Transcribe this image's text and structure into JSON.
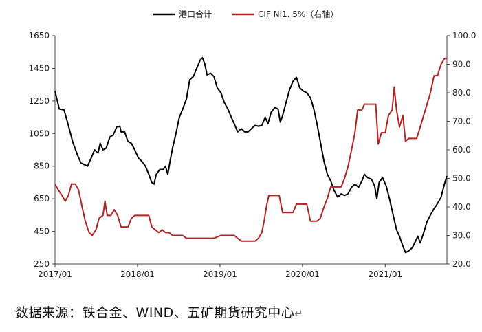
{
  "chart_data": {
    "type": "line",
    "legend_position": "top-center",
    "x": {
      "ticks": [
        "2017/01",
        "2018/01",
        "2019/01",
        "2020/01",
        "2021/01"
      ],
      "range": [
        "2017-01-01",
        "2021-10-01"
      ]
    },
    "y_left": {
      "ticks": [
        "250",
        "450",
        "650",
        "850",
        "1050",
        "1250",
        "1450",
        "1650"
      ],
      "range": [
        250,
        1650
      ]
    },
    "y_right": {
      "ticks": [
        "20.0",
        "30.0",
        "40.0",
        "50.0",
        "60.0",
        "70.0",
        "80.0",
        "90.0",
        "100.0"
      ],
      "range": [
        20,
        100
      ]
    },
    "series": [
      {
        "name": "港口合计",
        "axis": "left",
        "color": "#000000",
        "points": [
          [
            "2017-01-01",
            1310
          ],
          [
            "2017-01-20",
            1200
          ],
          [
            "2017-02-10",
            1195
          ],
          [
            "2017-03-01",
            1100
          ],
          [
            "2017-03-20",
            1000
          ],
          [
            "2017-04-10",
            920
          ],
          [
            "2017-04-25",
            870
          ],
          [
            "2017-05-10",
            860
          ],
          [
            "2017-05-25",
            850
          ],
          [
            "2017-06-10",
            900
          ],
          [
            "2017-06-25",
            950
          ],
          [
            "2017-07-10",
            930
          ],
          [
            "2017-07-20",
            990
          ],
          [
            "2017-08-01",
            950
          ],
          [
            "2017-08-15",
            960
          ],
          [
            "2017-09-01",
            1030
          ],
          [
            "2017-09-15",
            1040
          ],
          [
            "2017-10-01",
            1090
          ],
          [
            "2017-10-15",
            1095
          ],
          [
            "2017-10-20",
            1060
          ],
          [
            "2017-11-05",
            1060
          ],
          [
            "2017-11-20",
            1000
          ],
          [
            "2017-12-05",
            990
          ],
          [
            "2017-12-20",
            950
          ],
          [
            "2018-01-05",
            900
          ],
          [
            "2018-01-20",
            880
          ],
          [
            "2018-02-05",
            850
          ],
          [
            "2018-02-20",
            800
          ],
          [
            "2018-03-05",
            750
          ],
          [
            "2018-03-15",
            740
          ],
          [
            "2018-03-25",
            800
          ],
          [
            "2018-04-10",
            830
          ],
          [
            "2018-04-25",
            830
          ],
          [
            "2018-05-05",
            850
          ],
          [
            "2018-05-15",
            800
          ],
          [
            "2018-05-25",
            880
          ],
          [
            "2018-06-05",
            960
          ],
          [
            "2018-06-20",
            1050
          ],
          [
            "2018-07-05",
            1150
          ],
          [
            "2018-07-20",
            1200
          ],
          [
            "2018-08-05",
            1260
          ],
          [
            "2018-08-20",
            1380
          ],
          [
            "2018-09-05",
            1400
          ],
          [
            "2018-09-20",
            1450
          ],
          [
            "2018-10-05",
            1500
          ],
          [
            "2018-10-15",
            1515
          ],
          [
            "2018-10-25",
            1480
          ],
          [
            "2018-11-05",
            1410
          ],
          [
            "2018-11-20",
            1420
          ],
          [
            "2018-12-05",
            1400
          ],
          [
            "2018-12-20",
            1330
          ],
          [
            "2019-01-05",
            1300
          ],
          [
            "2019-01-20",
            1240
          ],
          [
            "2019-02-05",
            1200
          ],
          [
            "2019-02-20",
            1150
          ],
          [
            "2019-03-05",
            1110
          ],
          [
            "2019-03-20",
            1060
          ],
          [
            "2019-04-05",
            1080
          ],
          [
            "2019-04-20",
            1060
          ],
          [
            "2019-05-05",
            1060
          ],
          [
            "2019-05-20",
            1080
          ],
          [
            "2019-06-05",
            1100
          ],
          [
            "2019-06-20",
            1095
          ],
          [
            "2019-07-05",
            1100
          ],
          [
            "2019-07-20",
            1150
          ],
          [
            "2019-08-01",
            1110
          ],
          [
            "2019-08-15",
            1180
          ],
          [
            "2019-09-01",
            1210
          ],
          [
            "2019-09-15",
            1200
          ],
          [
            "2019-09-25",
            1120
          ],
          [
            "2019-10-05",
            1160
          ],
          [
            "2019-10-20",
            1240
          ],
          [
            "2019-11-05",
            1320
          ],
          [
            "2019-11-20",
            1370
          ],
          [
            "2019-12-05",
            1395
          ],
          [
            "2019-12-20",
            1330
          ],
          [
            "2020-01-05",
            1310
          ],
          [
            "2020-01-20",
            1300
          ],
          [
            "2020-02-05",
            1270
          ],
          [
            "2020-02-20",
            1200
          ],
          [
            "2020-03-05",
            1110
          ],
          [
            "2020-03-20",
            1000
          ],
          [
            "2020-04-05",
            880
          ],
          [
            "2020-04-20",
            800
          ],
          [
            "2020-05-05",
            760
          ],
          [
            "2020-05-20",
            700
          ],
          [
            "2020-06-05",
            660
          ],
          [
            "2020-06-20",
            680
          ],
          [
            "2020-07-05",
            670
          ],
          [
            "2020-07-20",
            680
          ],
          [
            "2020-08-05",
            720
          ],
          [
            "2020-08-20",
            740
          ],
          [
            "2020-09-05",
            720
          ],
          [
            "2020-09-20",
            760
          ],
          [
            "2020-10-01",
            800
          ],
          [
            "2020-10-15",
            780
          ],
          [
            "2020-11-01",
            770
          ],
          [
            "2020-11-15",
            730
          ],
          [
            "2020-11-25",
            650
          ],
          [
            "2020-12-05",
            750
          ],
          [
            "2020-12-20",
            780
          ],
          [
            "2021-01-05",
            730
          ],
          [
            "2021-01-20",
            650
          ],
          [
            "2021-02-05",
            550
          ],
          [
            "2021-02-20",
            460
          ],
          [
            "2021-03-05",
            420
          ],
          [
            "2021-03-20",
            360
          ],
          [
            "2021-04-01",
            320
          ],
          [
            "2021-04-15",
            330
          ],
          [
            "2021-05-01",
            350
          ],
          [
            "2021-05-15",
            390
          ],
          [
            "2021-05-25",
            420
          ],
          [
            "2021-06-05",
            380
          ],
          [
            "2021-06-20",
            440
          ],
          [
            "2021-07-05",
            510
          ],
          [
            "2021-07-20",
            550
          ],
          [
            "2021-08-05",
            590
          ],
          [
            "2021-08-20",
            620
          ],
          [
            "2021-09-05",
            660
          ],
          [
            "2021-09-20",
            740
          ],
          [
            "2021-10-01",
            790
          ]
        ]
      },
      {
        "name": "CIF Ni1. 5%（右轴）",
        "axis": "right",
        "color": "#b22222",
        "points": [
          [
            "2017-01-01",
            48
          ],
          [
            "2017-01-15",
            46
          ],
          [
            "2017-02-01",
            44
          ],
          [
            "2017-02-15",
            42
          ],
          [
            "2017-03-01",
            44
          ],
          [
            "2017-03-15",
            48
          ],
          [
            "2017-04-01",
            48
          ],
          [
            "2017-04-15",
            46
          ],
          [
            "2017-05-01",
            40
          ],
          [
            "2017-05-15",
            35
          ],
          [
            "2017-06-01",
            31
          ],
          [
            "2017-06-15",
            30
          ],
          [
            "2017-07-01",
            32
          ],
          [
            "2017-07-15",
            36
          ],
          [
            "2017-08-01",
            37
          ],
          [
            "2017-08-10",
            42
          ],
          [
            "2017-08-20",
            37
          ],
          [
            "2017-09-05",
            37
          ],
          [
            "2017-09-20",
            39
          ],
          [
            "2017-10-05",
            37
          ],
          [
            "2017-10-20",
            33
          ],
          [
            "2017-11-05",
            33
          ],
          [
            "2017-11-20",
            33
          ],
          [
            "2017-12-05",
            36
          ],
          [
            "2017-12-20",
            37
          ],
          [
            "2018-01-20",
            37
          ],
          [
            "2018-02-20",
            37
          ],
          [
            "2018-03-05",
            33
          ],
          [
            "2018-03-20",
            32
          ],
          [
            "2018-04-05",
            31
          ],
          [
            "2018-04-20",
            32
          ],
          [
            "2018-05-05",
            31
          ],
          [
            "2018-05-20",
            31
          ],
          [
            "2018-06-05",
            30
          ],
          [
            "2018-07-05",
            30
          ],
          [
            "2018-07-20",
            30
          ],
          [
            "2018-08-05",
            29
          ],
          [
            "2018-09-05",
            29
          ],
          [
            "2018-10-05",
            29
          ],
          [
            "2018-11-05",
            29
          ],
          [
            "2018-12-05",
            29
          ],
          [
            "2019-01-05",
            30
          ],
          [
            "2019-02-05",
            30
          ],
          [
            "2019-03-05",
            30
          ],
          [
            "2019-03-20",
            29
          ],
          [
            "2019-04-05",
            28
          ],
          [
            "2019-05-05",
            28
          ],
          [
            "2019-06-05",
            28
          ],
          [
            "2019-06-20",
            29
          ],
          [
            "2019-07-05",
            31
          ],
          [
            "2019-07-15",
            35
          ],
          [
            "2019-07-25",
            40
          ],
          [
            "2019-08-05",
            44
          ],
          [
            "2019-09-05",
            44
          ],
          [
            "2019-09-20",
            44
          ],
          [
            "2019-10-05",
            38
          ],
          [
            "2019-11-05",
            38
          ],
          [
            "2019-11-20",
            38
          ],
          [
            "2019-12-05",
            41
          ],
          [
            "2019-12-20",
            41
          ],
          [
            "2020-01-05",
            41
          ],
          [
            "2020-01-20",
            41
          ],
          [
            "2020-02-05",
            35
          ],
          [
            "2020-03-05",
            35
          ],
          [
            "2020-03-20",
            36
          ],
          [
            "2020-04-05",
            40
          ],
          [
            "2020-04-20",
            43
          ],
          [
            "2020-05-05",
            47
          ],
          [
            "2020-06-05",
            47
          ],
          [
            "2020-06-20",
            47
          ],
          [
            "2020-07-05",
            50
          ],
          [
            "2020-07-20",
            54
          ],
          [
            "2020-08-05",
            60
          ],
          [
            "2020-08-20",
            66
          ],
          [
            "2020-09-01",
            74
          ],
          [
            "2020-09-20",
            74
          ],
          [
            "2020-10-01",
            76
          ],
          [
            "2020-11-01",
            76
          ],
          [
            "2020-11-20",
            76
          ],
          [
            "2020-12-01",
            62
          ],
          [
            "2020-12-15",
            66
          ],
          [
            "2021-01-01",
            66
          ],
          [
            "2021-01-15",
            72
          ],
          [
            "2021-02-01",
            74
          ],
          [
            "2021-02-10",
            82
          ],
          [
            "2021-02-20",
            74
          ],
          [
            "2021-03-05",
            68
          ],
          [
            "2021-03-20",
            72
          ],
          [
            "2021-04-01",
            63
          ],
          [
            "2021-04-15",
            64
          ],
          [
            "2021-05-01",
            64
          ],
          [
            "2021-05-20",
            64
          ],
          [
            "2021-06-05",
            68
          ],
          [
            "2021-06-20",
            72
          ],
          [
            "2021-07-05",
            76
          ],
          [
            "2021-07-20",
            80
          ],
          [
            "2021-08-05",
            86
          ],
          [
            "2021-08-20",
            86
          ],
          [
            "2021-09-05",
            90
          ],
          [
            "2021-09-20",
            92
          ],
          [
            "2021-10-01",
            92
          ]
        ]
      }
    ]
  },
  "source": "数据来源：铁合金、WIND、五矿期货研究中心",
  "return_mark": "↵"
}
